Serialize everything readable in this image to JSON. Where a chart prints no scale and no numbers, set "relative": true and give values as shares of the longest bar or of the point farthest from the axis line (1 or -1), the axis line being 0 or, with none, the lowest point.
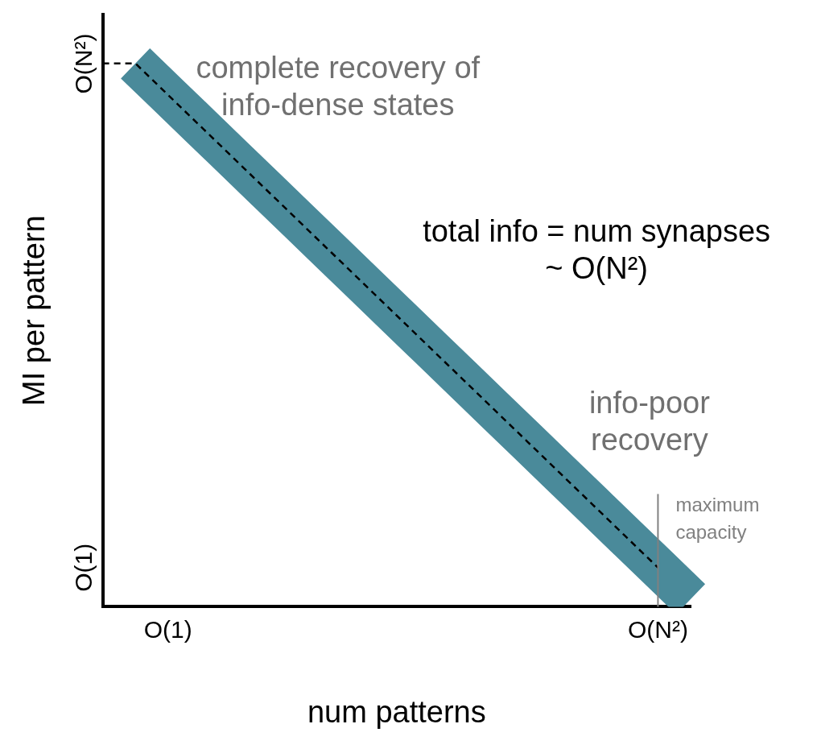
{
  "chart_data": {
    "type": "line",
    "xlabel": "num patterns",
    "ylabel": "MI per pattern",
    "relative": true,
    "categories": [
      null,
      null,
      "O(1)",
      null,
      null,
      null,
      null,
      null,
      null,
      null,
      null,
      null,
      null,
      null,
      null,
      null,
      null,
      "O(N²)",
      null
    ],
    "series": [
      {
        "color": "#4a8a9a",
        "line_style": "solid",
        "values": [
          null,
          1,
          0.942,
          0.884,
          0.826,
          0.768,
          0.71,
          0.652,
          0.594,
          0.536,
          0.478,
          0.42,
          0.362,
          0.304,
          0.246,
          0.188,
          0.13,
          0.072,
          0.014
        ]
      },
      {
        "color": "#000000",
        "line_style": "dashed",
        "values": [
          1,
          1,
          0.942,
          0.884,
          0.826,
          0.768,
          0.71,
          0.652,
          0.594,
          0.536,
          0.478,
          0.42,
          0.362,
          0.304,
          0.246,
          0.188,
          0.13,
          0.072,
          null
        ]
      }
    ],
    "ref_lines": [
      {
        "axis": "x",
        "value": "O(N²)",
        "label": "maximum capacity",
        "color": "#808080"
      }
    ],
    "annotations": [
      "O(N²)",
      "O(1)",
      "complete recovery of info-dense states",
      "total info = num synapses ~ O(N²)",
      "info-poor recovery"
    ],
    "grid": false,
    "legend": false
  }
}
